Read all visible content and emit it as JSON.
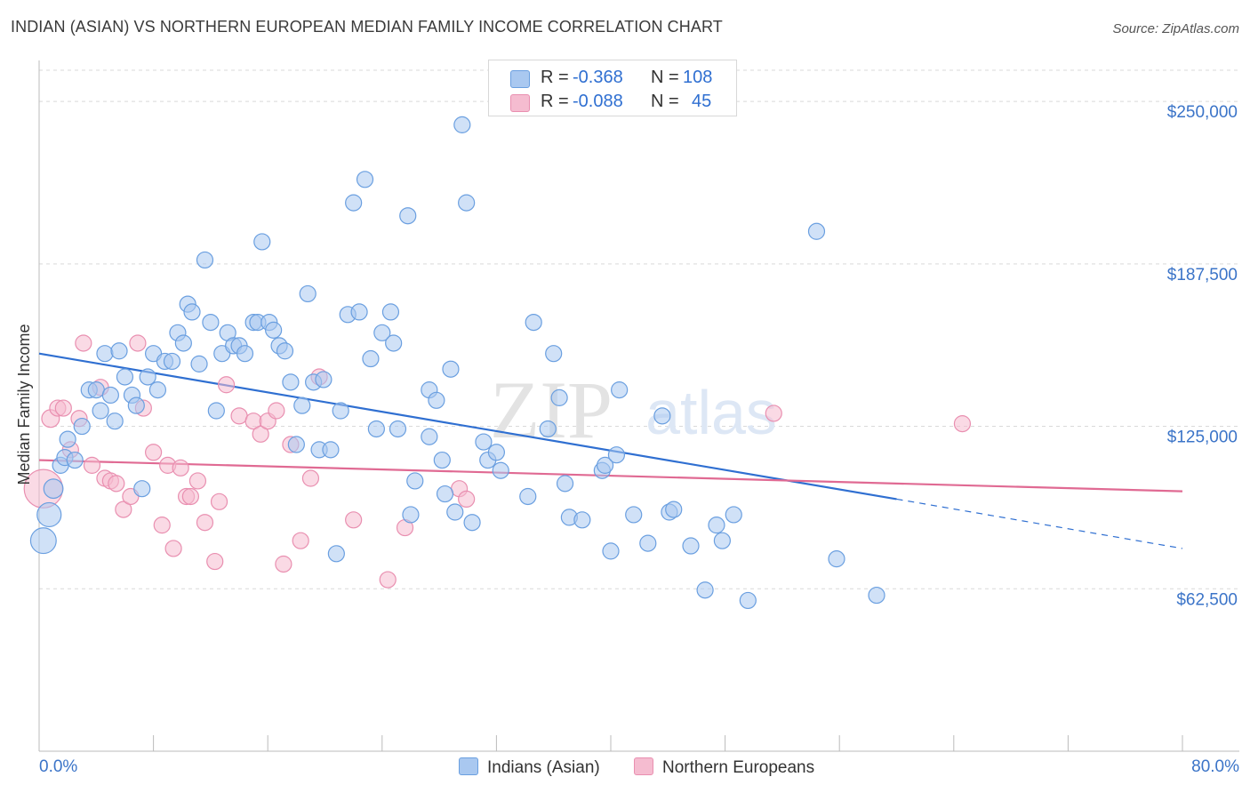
{
  "title": "INDIAN (ASIAN) VS NORTHERN EUROPEAN MEDIAN FAMILY INCOME CORRELATION CHART",
  "source": "Source: ZipAtlas.com",
  "colors": {
    "blue_fill": "#a9c8f0",
    "blue_stroke": "#6a9fe0",
    "blue_line": "#2f6fd1",
    "pink_fill": "#f5bcd0",
    "pink_stroke": "#e98fb0",
    "pink_line": "#e06a93",
    "axis_label": "#3b74c8",
    "grid": "#d9d9d9"
  },
  "legend": {
    "rows": [
      {
        "r_label": "R =",
        "r_value": "-0.368",
        "n_label": "N =",
        "n_value": "108"
      },
      {
        "r_label": "R =",
        "r_value": "-0.088",
        "n_label": "N =",
        "n_value": "45"
      }
    ]
  },
  "bottom_legend": {
    "series_a": "Indians (Asian)",
    "series_b": "Northern Europeans"
  },
  "chart_data": {
    "type": "scatter",
    "ylabel": "Median Family Income",
    "x_axis": {
      "min": 0,
      "max": 80,
      "min_label": "0.0%",
      "max_label": "80.0%"
    },
    "y_axis": {
      "min": 0,
      "max": 262000,
      "ticks": [
        62500,
        125000,
        187500,
        250000
      ],
      "tick_labels": [
        "$62,500",
        "$125,000",
        "$187,500",
        "$250,000"
      ]
    },
    "grid": true,
    "watermark": {
      "left": "ZIP",
      "right": "atlas"
    },
    "series": [
      {
        "name": "Indians (Asian)",
        "trend": {
          "x1": 0,
          "y1": 153000,
          "x2": 60,
          "y2": 97000,
          "dash_to_x": 80,
          "dash_to_y": 78000
        },
        "points": [
          [
            0.3,
            81000,
            1.6
          ],
          [
            0.7,
            91000,
            1.5
          ],
          [
            1.0,
            101000,
            1.2
          ],
          [
            1.5,
            110000,
            1
          ],
          [
            1.8,
            113000,
            1
          ],
          [
            2.0,
            120000,
            1
          ],
          [
            2.5,
            112000,
            1
          ],
          [
            3.0,
            125000,
            1
          ],
          [
            3.5,
            139000,
            1
          ],
          [
            4.0,
            139000,
            1
          ],
          [
            4.3,
            131000,
            1
          ],
          [
            4.6,
            153000,
            1
          ],
          [
            5.0,
            137000,
            1
          ],
          [
            5.3,
            127000,
            1
          ],
          [
            5.6,
            154000,
            1
          ],
          [
            6.0,
            144000,
            1
          ],
          [
            6.5,
            137000,
            1
          ],
          [
            6.8,
            133000,
            1
          ],
          [
            7.2,
            101000,
            1
          ],
          [
            7.6,
            144000,
            1
          ],
          [
            8.0,
            153000,
            1
          ],
          [
            8.3,
            139000,
            1
          ],
          [
            8.8,
            150000,
            1
          ],
          [
            9.3,
            150000,
            1
          ],
          [
            9.7,
            161000,
            1
          ],
          [
            10.1,
            157000,
            1
          ],
          [
            10.4,
            172000,
            1
          ],
          [
            10.7,
            169000,
            1
          ],
          [
            11.2,
            149000,
            1
          ],
          [
            11.6,
            189000,
            1
          ],
          [
            12.0,
            165000,
            1
          ],
          [
            12.4,
            131000,
            1
          ],
          [
            12.8,
            153000,
            1
          ],
          [
            13.2,
            161000,
            1
          ],
          [
            13.6,
            156000,
            1
          ],
          [
            14.0,
            156000,
            1
          ],
          [
            14.4,
            153000,
            1
          ],
          [
            15.0,
            165000,
            1
          ],
          [
            15.3,
            165000,
            1
          ],
          [
            15.6,
            196000,
            1
          ],
          [
            16.1,
            165000,
            1
          ],
          [
            16.4,
            162000,
            1
          ],
          [
            16.8,
            156000,
            1
          ],
          [
            17.2,
            154000,
            1
          ],
          [
            17.6,
            142000,
            1
          ],
          [
            18.0,
            118000,
            1
          ],
          [
            18.4,
            133000,
            1
          ],
          [
            18.8,
            176000,
            1
          ],
          [
            19.2,
            142000,
            1
          ],
          [
            19.6,
            116000,
            1
          ],
          [
            19.9,
            143000,
            1
          ],
          [
            20.4,
            116000,
            1
          ],
          [
            20.8,
            76000,
            1
          ],
          [
            21.1,
            131000,
            1
          ],
          [
            21.6,
            168000,
            1
          ],
          [
            22.0,
            211000,
            1
          ],
          [
            22.4,
            169000,
            1
          ],
          [
            22.8,
            220000,
            1
          ],
          [
            23.2,
            151000,
            1
          ],
          [
            23.6,
            124000,
            1
          ],
          [
            24.0,
            161000,
            1
          ],
          [
            24.6,
            169000,
            1
          ],
          [
            24.8,
            157000,
            1
          ],
          [
            25.1,
            124000,
            1
          ],
          [
            25.8,
            206000,
            1
          ],
          [
            26.0,
            91000,
            1
          ],
          [
            26.3,
            104000,
            1
          ],
          [
            27.3,
            121000,
            1
          ],
          [
            27.3,
            139000,
            1
          ],
          [
            27.8,
            135000,
            1
          ],
          [
            28.2,
            112000,
            1
          ],
          [
            28.4,
            99000,
            1
          ],
          [
            28.8,
            147000,
            1
          ],
          [
            29.1,
            92000,
            1
          ],
          [
            29.6,
            241000,
            1
          ],
          [
            29.9,
            211000,
            1
          ],
          [
            30.3,
            88000,
            1
          ],
          [
            31.1,
            119000,
            1
          ],
          [
            31.4,
            112000,
            1
          ],
          [
            32.0,
            115000,
            1
          ],
          [
            32.3,
            108000,
            1
          ],
          [
            34.2,
            98000,
            1
          ],
          [
            34.6,
            165000,
            1
          ],
          [
            35.6,
            124000,
            1
          ],
          [
            36.0,
            153000,
            1
          ],
          [
            36.4,
            136000,
            1
          ],
          [
            36.8,
            103000,
            1
          ],
          [
            37.1,
            90000,
            1
          ],
          [
            38.0,
            89000,
            1
          ],
          [
            39.4,
            108000,
            1
          ],
          [
            39.6,
            110000,
            1
          ],
          [
            40.0,
            77000,
            1
          ],
          [
            40.4,
            114000,
            1
          ],
          [
            40.6,
            139000,
            1
          ],
          [
            41.6,
            91000,
            1
          ],
          [
            42.6,
            80000,
            1
          ],
          [
            43.6,
            129000,
            1
          ],
          [
            44.1,
            92000,
            1
          ],
          [
            44.4,
            93000,
            1
          ],
          [
            45.6,
            79000,
            1
          ],
          [
            46.6,
            62000,
            1
          ],
          [
            47.4,
            87000,
            1
          ],
          [
            47.8,
            81000,
            1
          ],
          [
            48.6,
            91000,
            1
          ],
          [
            49.6,
            58000,
            1
          ],
          [
            54.4,
            200000,
            1
          ],
          [
            55.8,
            74000,
            1
          ],
          [
            58.6,
            60000,
            1
          ]
        ]
      },
      {
        "name": "Northern Europeans",
        "trend": {
          "x1": 0,
          "y1": 112000,
          "x2": 80,
          "y2": 100000
        },
        "points": [
          [
            0.3,
            101000,
            2.4
          ],
          [
            0.8,
            128000,
            1.1
          ],
          [
            1.3,
            132000,
            1
          ],
          [
            1.7,
            132000,
            1
          ],
          [
            2.2,
            116000,
            1
          ],
          [
            2.8,
            128000,
            1
          ],
          [
            3.1,
            157000,
            1
          ],
          [
            3.7,
            110000,
            1
          ],
          [
            4.3,
            140000,
            1
          ],
          [
            4.6,
            105000,
            1
          ],
          [
            5.0,
            104000,
            1
          ],
          [
            5.4,
            103000,
            1
          ],
          [
            5.9,
            93000,
            1
          ],
          [
            6.4,
            98000,
            1
          ],
          [
            6.9,
            157000,
            1
          ],
          [
            7.3,
            132000,
            1
          ],
          [
            8.0,
            115000,
            1
          ],
          [
            8.6,
            87000,
            1
          ],
          [
            9.0,
            110000,
            1
          ],
          [
            9.4,
            78000,
            1
          ],
          [
            9.9,
            109000,
            1
          ],
          [
            10.3,
            98000,
            1
          ],
          [
            10.6,
            98000,
            1
          ],
          [
            11.1,
            104000,
            1
          ],
          [
            11.6,
            88000,
            1
          ],
          [
            12.3,
            73000,
            1
          ],
          [
            12.6,
            96000,
            1
          ],
          [
            13.1,
            141000,
            1
          ],
          [
            14.0,
            129000,
            1
          ],
          [
            15.0,
            127000,
            1
          ],
          [
            15.5,
            122000,
            1
          ],
          [
            16.0,
            127000,
            1
          ],
          [
            16.6,
            131000,
            1
          ],
          [
            17.1,
            72000,
            1
          ],
          [
            17.6,
            118000,
            1
          ],
          [
            18.3,
            81000,
            1
          ],
          [
            19.0,
            105000,
            1
          ],
          [
            19.6,
            144000,
            1
          ],
          [
            22.0,
            89000,
            1
          ],
          [
            24.4,
            66000,
            1
          ],
          [
            25.6,
            86000,
            1
          ],
          [
            29.4,
            101000,
            1
          ],
          [
            29.9,
            97000,
            1
          ],
          [
            51.4,
            130000,
            1
          ],
          [
            64.6,
            126000,
            1
          ]
        ]
      }
    ]
  }
}
